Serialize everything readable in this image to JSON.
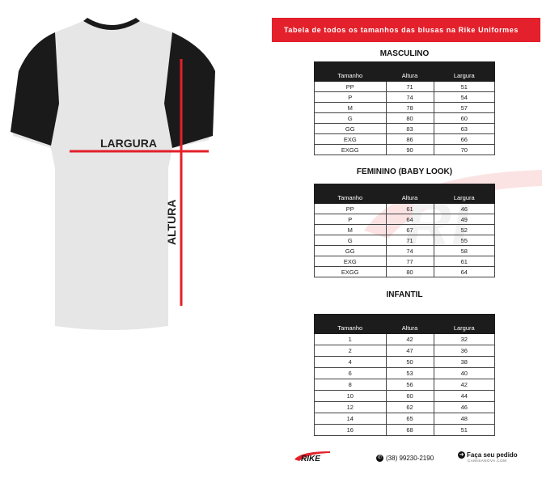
{
  "banner": "Tabela de todos os tamanhos das blusas na Rike Uniformes",
  "shirt": {
    "width_label": "LARGURA",
    "height_label": "ALTURA",
    "accent": "#e3202b"
  },
  "tables": [
    {
      "title": "MASCULINO",
      "headers": [
        "Tamanho",
        "Altura",
        "Largura"
      ],
      "rows": [
        [
          "PP",
          "71",
          "51"
        ],
        [
          "P",
          "74",
          "54"
        ],
        [
          "M",
          "78",
          "57"
        ],
        [
          "G",
          "80",
          "60"
        ],
        [
          "GG",
          "83",
          "63"
        ],
        [
          "EXG",
          "86",
          "66"
        ],
        [
          "EXGG",
          "90",
          "70"
        ]
      ]
    },
    {
      "title": "FEMININO (BABY LOOK)",
      "headers": [
        "Tamanho",
        "Altura",
        "Largura"
      ],
      "rows": [
        [
          "PP",
          "61",
          "46"
        ],
        [
          "P",
          "64",
          "49"
        ],
        [
          "M",
          "67",
          "52"
        ],
        [
          "G",
          "71",
          "55"
        ],
        [
          "GG",
          "74",
          "58"
        ],
        [
          "EXG",
          "77",
          "61"
        ],
        [
          "EXGG",
          "80",
          "64"
        ]
      ]
    },
    {
      "title": "INFANTIL",
      "headers": [
        "Tamanho",
        "Altura",
        "Largura"
      ],
      "rows": [
        [
          "1",
          "42",
          "32"
        ],
        [
          "2",
          "47",
          "36"
        ],
        [
          "4",
          "50",
          "38"
        ],
        [
          "6",
          "53",
          "40"
        ],
        [
          "8",
          "56",
          "42"
        ],
        [
          "10",
          "60",
          "44"
        ],
        [
          "12",
          "62",
          "46"
        ],
        [
          "14",
          "65",
          "48"
        ],
        [
          "16",
          "68",
          "51"
        ]
      ]
    }
  ],
  "footer": {
    "logo": "RIKE",
    "phone": "(38) 99230-2190",
    "order": "Faça seu pedido",
    "site": "CAMISANOVA.COM"
  }
}
